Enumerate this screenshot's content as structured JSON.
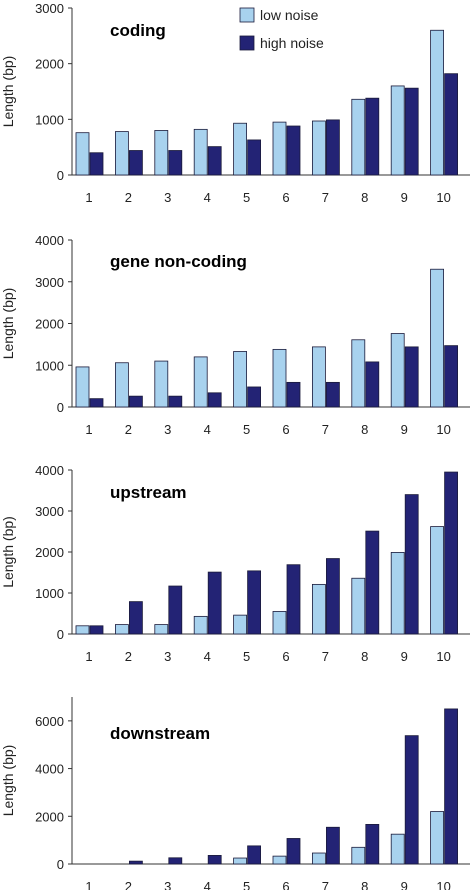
{
  "chart_data": [
    {
      "type": "bar",
      "title": "coding",
      "xlabel": "",
      "ylabel": "Length (bp)",
      "categories": [
        "1",
        "2",
        "3",
        "4",
        "5",
        "6",
        "7",
        "8",
        "9",
        "10"
      ],
      "ylim": [
        0,
        3000
      ],
      "yticks": [
        "0",
        "1000",
        "2000",
        "3000"
      ],
      "legend": "top-center",
      "series": [
        {
          "name": "low noise",
          "values": [
            760,
            780,
            800,
            820,
            930,
            950,
            970,
            1360,
            1600,
            2600
          ]
        },
        {
          "name": "high noise",
          "values": [
            400,
            440,
            440,
            510,
            630,
            880,
            990,
            1380,
            1560,
            1820
          ]
        }
      ]
    },
    {
      "type": "bar",
      "title": "gene non-coding",
      "xlabel": "",
      "ylabel": "Length (bp)",
      "categories": [
        "1",
        "2",
        "3",
        "4",
        "5",
        "6",
        "7",
        "8",
        "9",
        "10"
      ],
      "ylim": [
        0,
        4000
      ],
      "yticks": [
        "0",
        "1000",
        "2000",
        "3000",
        "4000"
      ],
      "series": [
        {
          "name": "low noise",
          "values": [
            960,
            1060,
            1100,
            1200,
            1330,
            1380,
            1440,
            1610,
            1760,
            3300
          ]
        },
        {
          "name": "high noise",
          "values": [
            200,
            260,
            260,
            340,
            480,
            590,
            590,
            1080,
            1440,
            1470
          ]
        }
      ]
    },
    {
      "type": "bar",
      "title": "upstream",
      "xlabel": "",
      "ylabel": "Length (bp)",
      "categories": [
        "1",
        "2",
        "3",
        "4",
        "5",
        "6",
        "7",
        "8",
        "9",
        "10"
      ],
      "ylim": [
        0,
        4000
      ],
      "yticks": [
        "0",
        "1000",
        "2000",
        "3000",
        "4000"
      ],
      "series": [
        {
          "name": "low noise",
          "values": [
            200,
            230,
            230,
            430,
            460,
            550,
            1210,
            1360,
            1990,
            2620
          ]
        },
        {
          "name": "high noise",
          "values": [
            200,
            790,
            1170,
            1510,
            1540,
            1690,
            1840,
            2510,
            3400,
            3950
          ]
        }
      ]
    },
    {
      "type": "bar",
      "title": "downstream",
      "xlabel": "",
      "ylabel": "Length (bp)",
      "categories": [
        "1",
        "2",
        "3",
        "4",
        "5",
        "6",
        "7",
        "8",
        "9",
        "10"
      ],
      "ylim": [
        0,
        7000
      ],
      "yticks": [
        "0",
        "2000",
        "4000",
        "6000"
      ],
      "series": [
        {
          "name": "low noise",
          "values": [
            0,
            0,
            0,
            0,
            250,
            330,
            460,
            700,
            1250,
            2200
          ]
        },
        {
          "name": "high noise",
          "values": [
            0,
            120,
            260,
            360,
            760,
            1070,
            1540,
            1660,
            5380,
            6500
          ]
        }
      ]
    }
  ],
  "colors": {
    "low": "#a8d2ee",
    "high": "#232375",
    "axis": "#333333"
  }
}
